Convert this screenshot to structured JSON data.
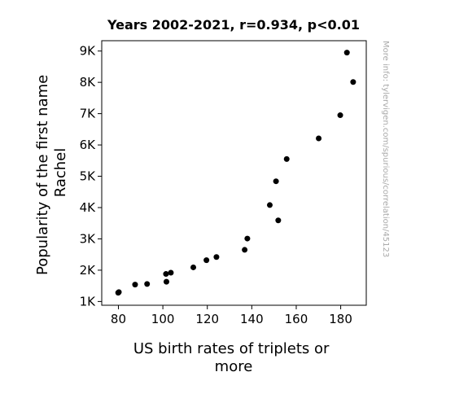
{
  "chart_data": {
    "type": "scatter",
    "title": "Years 2002-2021, r=0.934, p<0.01",
    "xlabel": [
      "US birth rates of triplets or",
      "more"
    ],
    "ylabel": [
      "Popularity of the first name",
      "Rachel"
    ],
    "xlim": [
      72.5,
      191.5
    ],
    "ylim": [
      880,
      9330
    ],
    "x_ticks": [
      80,
      100,
      120,
      140,
      160,
      180
    ],
    "x_tick_labels": [
      "80",
      "100",
      "120",
      "140",
      "160",
      "180"
    ],
    "y_ticks": [
      1000,
      2000,
      3000,
      4000,
      5000,
      6000,
      7000,
      8000,
      9000
    ],
    "y_tick_labels": [
      "1K",
      "2K",
      "3K",
      "4K",
      "5K",
      "6K",
      "7K",
      "8K",
      "9K"
    ],
    "grid": false,
    "point_color": "#000000",
    "points": [
      {
        "x": 80.2,
        "y": 1300
      },
      {
        "x": 79.9,
        "y": 1280
      },
      {
        "x": 87.5,
        "y": 1540
      },
      {
        "x": 92.9,
        "y": 1560
      },
      {
        "x": 101.4,
        "y": 1880
      },
      {
        "x": 101.6,
        "y": 1630
      },
      {
        "x": 103.6,
        "y": 1920
      },
      {
        "x": 113.7,
        "y": 2090
      },
      {
        "x": 119.6,
        "y": 2320
      },
      {
        "x": 124.1,
        "y": 2420
      },
      {
        "x": 136.8,
        "y": 2650
      },
      {
        "x": 138.0,
        "y": 3010
      },
      {
        "x": 148.1,
        "y": 4080
      },
      {
        "x": 150.9,
        "y": 4840
      },
      {
        "x": 151.9,
        "y": 3590
      },
      {
        "x": 155.7,
        "y": 5550
      },
      {
        "x": 170.1,
        "y": 6210
      },
      {
        "x": 179.8,
        "y": 6950
      },
      {
        "x": 182.8,
        "y": 8950
      },
      {
        "x": 185.6,
        "y": 8010
      }
    ]
  },
  "watermark": "More info: tylervigen.com/spurious/correlation/45123"
}
